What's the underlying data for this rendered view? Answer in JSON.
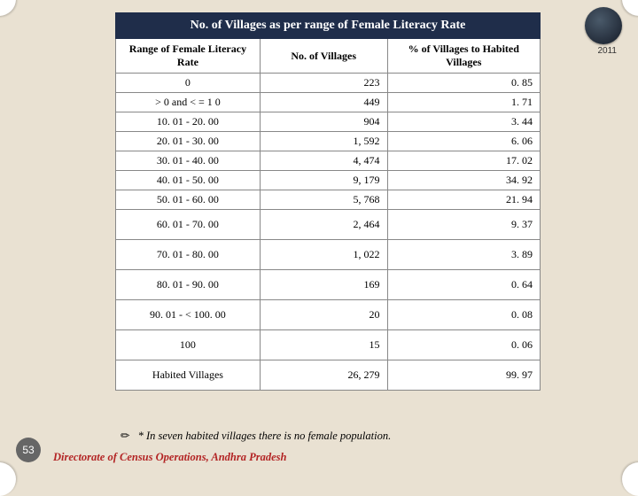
{
  "meta": {
    "year": "2011",
    "page_number": "53",
    "source_line": "Directorate of Census Operations, Andhra Pradesh",
    "footnote_bullet": "✏",
    "footnote_text": "* In seven habited villages there is no female population."
  },
  "table": {
    "title": "No. of Villages as per range of Female Literacy Rate",
    "columns": [
      "Range of Female Literacy Rate",
      "No. of Villages",
      "% of Villages to Habited Villages"
    ],
    "rows": [
      {
        "range": "0",
        "villages": "223",
        "pct": "0. 85"
      },
      {
        "range": "> 0 and < = 1 0",
        "villages": "449",
        "pct": "1. 71"
      },
      {
        "range": "10. 01 - 20. 00",
        "villages": "904",
        "pct": "3. 44"
      },
      {
        "range": "20. 01 - 30. 00",
        "villages": "1, 592",
        "pct": "6. 06"
      },
      {
        "range": "30. 01 - 40. 00",
        "villages": "4, 474",
        "pct": "17. 02"
      },
      {
        "range": "40. 01 - 50. 00",
        "villages": "9, 179",
        "pct": "34. 92"
      },
      {
        "range": "50. 01 - 60. 00",
        "villages": "5, 768",
        "pct": "21. 94"
      },
      {
        "range": "60. 01 - 70. 00",
        "villages": "2, 464",
        "pct": "9. 37",
        "tall": true
      },
      {
        "range": "70. 01 - 80. 00",
        "villages": "1, 022",
        "pct": "3. 89",
        "tall": true
      },
      {
        "range": "80. 01 - 90. 00",
        "villages": "169",
        "pct": "0. 64",
        "tall": true
      },
      {
        "range": "90. 01 - < 100. 00",
        "villages": "20",
        "pct": "0. 08",
        "tall": true
      },
      {
        "range": "100",
        "villages": "15",
        "pct": "0. 06",
        "tall": true
      },
      {
        "range": "Habited Villages",
        "villages": "26, 279",
        "pct": "99. 97",
        "tall": true
      }
    ],
    "colors": {
      "header_bg": "#1f2d4a",
      "header_fg": "#ffffff",
      "border": "#888888",
      "page_bg": "#e9e1d2",
      "source_color": "#b32424"
    }
  }
}
